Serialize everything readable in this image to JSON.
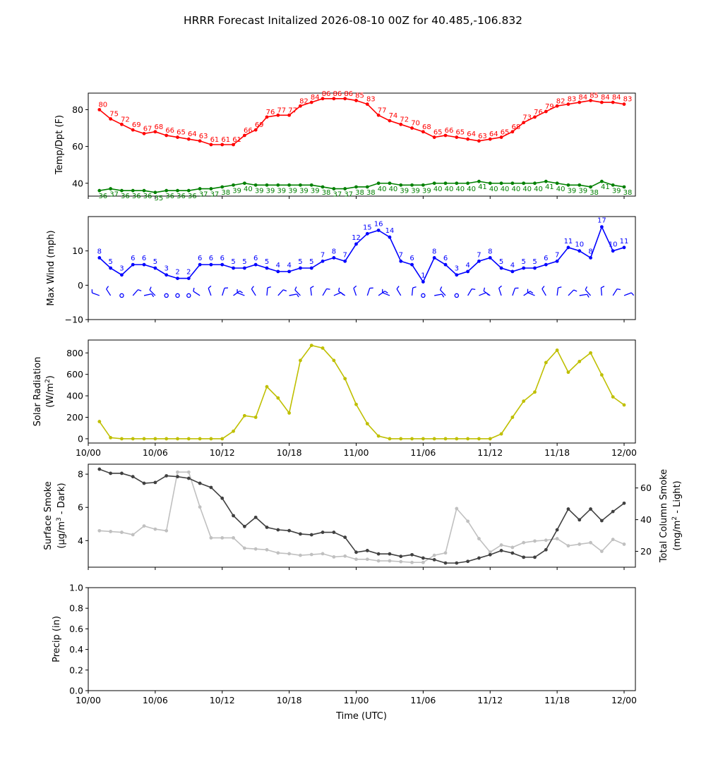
{
  "title": "HRRR Forecast Initalized 2026-08-10 00Z for 40.485,-106.832",
  "x_ticks": [
    "10/00",
    "10/06",
    "10/12",
    "10/18",
    "11/00",
    "11/06",
    "11/12",
    "11/18",
    "12/00"
  ],
  "xlabel": "Time (UTC)",
  "colors": {
    "temp": "#ff0000",
    "dewpoint": "#008000",
    "wind": "#0000ff",
    "solar": "#bfbf00",
    "smoke_dark": "#404040",
    "smoke_light": "#c0c0c0"
  },
  "chart_data": [
    {
      "type": "line",
      "name": "temperature_dewpoint",
      "ylabel": "Temp/Dpt (F)",
      "yticks": [
        "40",
        "60",
        "80"
      ],
      "ylim": [
        33,
        89
      ],
      "x_hours": [
        1,
        2,
        3,
        4,
        5,
        6,
        7,
        8,
        9,
        10,
        11,
        12,
        13,
        14,
        15,
        16,
        17,
        18,
        19,
        20,
        21,
        22,
        23,
        24,
        25,
        26,
        27,
        28,
        29,
        30,
        31,
        32,
        33,
        34,
        35,
        36,
        37,
        38,
        39,
        40,
        41,
        42,
        43,
        44,
        45,
        46,
        47,
        48
      ],
      "series": [
        {
          "key": "temp",
          "values": [
            80,
            75,
            72,
            69,
            67,
            68,
            66,
            65,
            64,
            63,
            61,
            61,
            61,
            66,
            69,
            76,
            77,
            77,
            82,
            84,
            86,
            86,
            86,
            85,
            83,
            77,
            74,
            72,
            70,
            68,
            65,
            66,
            65,
            64,
            63,
            64,
            65,
            68,
            73,
            76,
            79,
            82,
            83,
            84,
            85,
            84,
            84,
            83
          ]
        },
        {
          "key": "dewpoint",
          "values": [
            36,
            37,
            36,
            36,
            36,
            35,
            36,
            36,
            36,
            37,
            37,
            38,
            39,
            40,
            39,
            39,
            39,
            39,
            39,
            39,
            38,
            37,
            37,
            38,
            38,
            40,
            40,
            39,
            39,
            39,
            40,
            40,
            40,
            40,
            41,
            40,
            40,
            40,
            40,
            40,
            41,
            40,
            39,
            39,
            38,
            41,
            39,
            38
          ]
        }
      ]
    },
    {
      "type": "line",
      "name": "max_wind",
      "ylabel": "Max Wind (mph)",
      "yticks": [
        "−10",
        "0",
        "10"
      ],
      "ylim": [
        -10,
        20
      ],
      "x_hours": [
        1,
        2,
        3,
        4,
        5,
        6,
        7,
        8,
        9,
        10,
        11,
        12,
        13,
        14,
        15,
        16,
        17,
        18,
        19,
        20,
        21,
        22,
        23,
        24,
        25,
        26,
        27,
        28,
        29,
        30,
        31,
        32,
        33,
        34,
        35,
        36,
        37,
        38,
        39,
        40,
        41,
        42,
        43,
        44,
        45,
        46,
        47,
        48
      ],
      "series": [
        {
          "key": "wind",
          "values": [
            8,
            5,
            3,
            6,
            6,
            5,
            3,
            2,
            2,
            6,
            6,
            6,
            5,
            5,
            6,
            5,
            4,
            4,
            5,
            5,
            7,
            8,
            7,
            12,
            15,
            16,
            14,
            7,
            6,
            1,
            8,
            6,
            3,
            4,
            7,
            8,
            5,
            4,
            5,
            5,
            6,
            7,
            11,
            10,
            8,
            17,
            10,
            11
          ]
        }
      ]
    },
    {
      "type": "line",
      "name": "solar_radiation",
      "ylabel": "Solar Radiation",
      "ylabel_unit": "(W/m",
      "ylabel_sup": "2",
      "ylabel_close": ")",
      "yticks": [
        "0",
        "200",
        "400",
        "600",
        "800"
      ],
      "ylim": [
        -40,
        920
      ],
      "x_hours": [
        1,
        2,
        3,
        4,
        5,
        6,
        7,
        8,
        9,
        10,
        11,
        12,
        13,
        14,
        15,
        16,
        17,
        18,
        19,
        20,
        21,
        22,
        23,
        24,
        25,
        26,
        27,
        28,
        29,
        30,
        31,
        32,
        33,
        34,
        35,
        36,
        37,
        38,
        39,
        40,
        41,
        42,
        43,
        44,
        45,
        46,
        47,
        48
      ],
      "series": [
        {
          "key": "solar",
          "values": [
            160,
            10,
            0,
            0,
            0,
            0,
            0,
            0,
            0,
            0,
            0,
            0,
            70,
            215,
            200,
            485,
            380,
            240,
            730,
            870,
            845,
            730,
            560,
            320,
            140,
            25,
            0,
            0,
            0,
            0,
            0,
            0,
            0,
            0,
            0,
            0,
            45,
            200,
            350,
            435,
            710,
            825,
            620,
            720,
            800,
            595,
            390,
            315
          ]
        }
      ]
    },
    {
      "type": "line",
      "name": "smoke",
      "ylabel_left_line1": "Surface Smoke",
      "ylabel_left_line2": "(μg/m",
      "ylabel_left_sup": "3",
      "ylabel_left_tail": " - Dark)",
      "ylabel_right_line1": "Total Column Smoke",
      "ylabel_right_line2": "(mg/m",
      "ylabel_right_sup": "2",
      "ylabel_right_tail": " - Light)",
      "yticks_left": [
        "4",
        "6",
        "8"
      ],
      "ylim_left": [
        2.4,
        8.6
      ],
      "yticks_right": [
        "20",
        "40",
        "60"
      ],
      "ylim_right": [
        10,
        75
      ],
      "x_hours": [
        1,
        2,
        3,
        4,
        5,
        6,
        7,
        8,
        9,
        10,
        11,
        12,
        13,
        14,
        15,
        16,
        17,
        18,
        19,
        20,
        21,
        22,
        23,
        24,
        25,
        26,
        27,
        28,
        29,
        30,
        31,
        32,
        33,
        34,
        35,
        36,
        37,
        38,
        39,
        40,
        41,
        42,
        43,
        44,
        45,
        46,
        47,
        48
      ],
      "series": [
        {
          "key": "smoke_dark",
          "axis": "left",
          "values": [
            8.3,
            8.05,
            8.05,
            7.85,
            7.45,
            7.5,
            7.9,
            7.85,
            7.75,
            7.45,
            7.2,
            6.55,
            5.5,
            4.85,
            5.4,
            4.8,
            4.65,
            4.6,
            4.4,
            4.35,
            4.5,
            4.5,
            4.2,
            3.3,
            3.4,
            3.2,
            3.2,
            3.05,
            3.15,
            2.95,
            2.85,
            2.65,
            2.65,
            2.75,
            2.95,
            3.15,
            3.4,
            3.25,
            3.0,
            3.0,
            3.45,
            4.65,
            5.9,
            5.25,
            5.9,
            5.2,
            5.75,
            6.25
          ]
        },
        {
          "key": "smoke_light",
          "axis": "right",
          "values": [
            33,
            32.5,
            32,
            30.5,
            36,
            34,
            33,
            70,
            70,
            48,
            28.5,
            28.5,
            28.5,
            22,
            21.5,
            21,
            19,
            18.5,
            17.5,
            18,
            18.5,
            16.5,
            17,
            15,
            15,
            14,
            14,
            13.5,
            13,
            13,
            17.5,
            19,
            47,
            39,
            28,
            19.5,
            24,
            22.5,
            25.5,
            26.5,
            27,
            28,
            23.5,
            24.5,
            25.5,
            20,
            27.5,
            24.5
          ]
        }
      ]
    },
    {
      "type": "line",
      "name": "precip",
      "ylabel": "Precip (in)",
      "yticks": [
        "0.0",
        "0.2",
        "0.4",
        "0.6",
        "0.8",
        "1.0"
      ],
      "ylim": [
        0,
        1
      ],
      "series": []
    }
  ]
}
